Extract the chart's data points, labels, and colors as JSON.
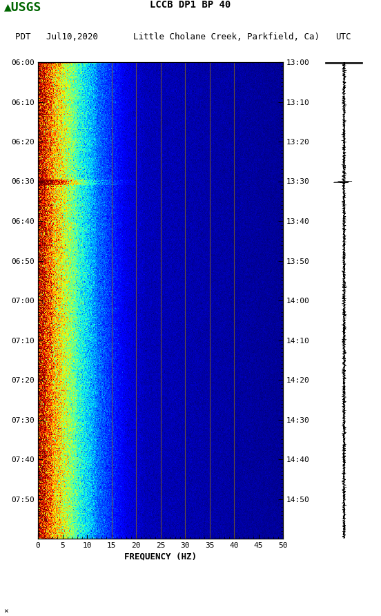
{
  "title_line1": "LCCB DP1 BP 40",
  "title_line2_left": "PDT   Jul10,2020",
  "title_line2_center": "Little Cholane Creek, Parkfield, Ca)",
  "title_line2_right": "UTC",
  "left_yticks": [
    "06:00",
    "06:10",
    "06:20",
    "06:30",
    "06:40",
    "06:50",
    "07:00",
    "07:10",
    "07:20",
    "07:30",
    "07:40",
    "07:50"
  ],
  "right_yticks": [
    "13:00",
    "13:10",
    "13:20",
    "13:30",
    "13:40",
    "13:50",
    "14:00",
    "14:10",
    "14:20",
    "14:30",
    "14:40",
    "14:50"
  ],
  "xticks": [
    0,
    5,
    10,
    15,
    20,
    25,
    30,
    35,
    40,
    45,
    50
  ],
  "xlabel": "FREQUENCY (HZ)",
  "freq_min": 0,
  "freq_max": 50,
  "time_steps": 600,
  "freq_steps": 400,
  "vline_freqs": [
    15,
    20,
    25,
    30,
    35,
    40
  ],
  "background_color": "#ffffff",
  "vline_color": "#8B6914",
  "usgs_color": "#006600"
}
